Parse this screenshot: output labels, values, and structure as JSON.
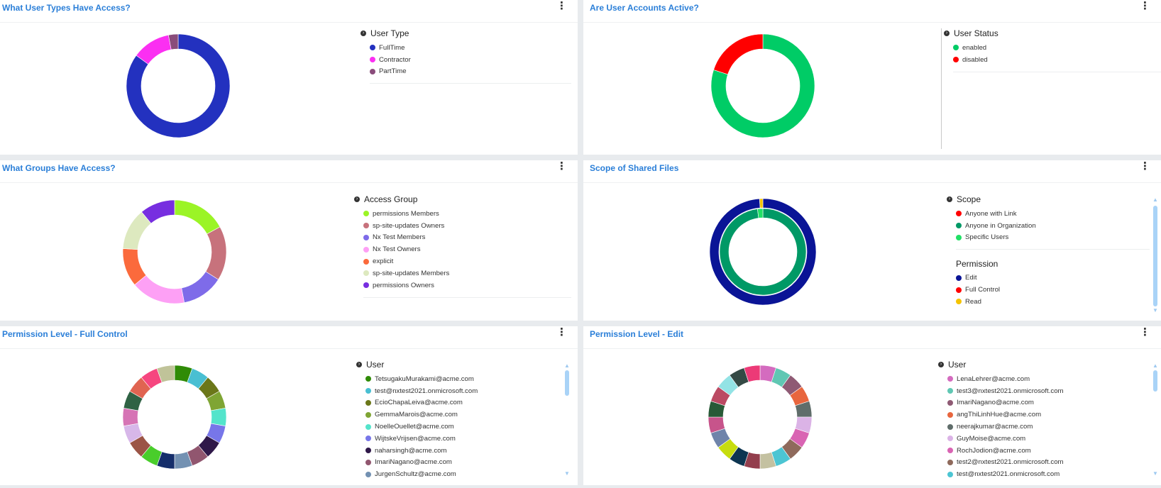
{
  "menu_glyph": "⋮",
  "chevron_glyph": "›",
  "scroll_up": "▲",
  "scroll_down": "▼",
  "panels": {
    "user_types": {
      "title": "What User Types Have Access?",
      "legend_title": "User Type",
      "items": [
        {
          "label": "FullTime",
          "color": "#2331bf",
          "value": 85
        },
        {
          "label": "Contractor",
          "color": "#fb2ff2",
          "value": 12
        },
        {
          "label": "PartTime",
          "color": "#8a4c7b",
          "value": 3
        }
      ]
    },
    "user_accounts": {
      "title": "Are User Accounts Active?",
      "legend_title": "User Status",
      "items": [
        {
          "label": "enabled",
          "color": "#00cc66",
          "value": 80
        },
        {
          "label": "disabled",
          "color": "#ff0000",
          "value": 20
        }
      ]
    },
    "groups": {
      "title": "What Groups Have Access?",
      "legend_title": "Access Group",
      "items": [
        {
          "label": "permissions Members",
          "color": "#9bf426",
          "value": 17
        },
        {
          "label": "sp-site-updates Owners",
          "color": "#c7727c",
          "value": 17
        },
        {
          "label": "Nx Test Members",
          "color": "#7e6be9",
          "value": 13
        },
        {
          "label": "Nx Test Owners",
          "color": "#fda0f5",
          "value": 17
        },
        {
          "label": "explicit",
          "color": "#fb6a3c",
          "value": 12
        },
        {
          "label": "sp-site-updates Members",
          "color": "#dde9bf",
          "value": 13
        },
        {
          "label": "permissions Owners",
          "color": "#772ee0",
          "value": 11
        }
      ]
    },
    "shared_files": {
      "title": "Scope of Shared Files",
      "legend_title": "Scope",
      "scope_items": [
        {
          "label": "Anyone with Link",
          "color": "#ff0000",
          "value": 0
        },
        {
          "label": "Anyone in Organization",
          "color": "#009966",
          "value": 98
        },
        {
          "label": "Specific Users",
          "color": "#21e065",
          "value": 2
        }
      ],
      "permission_title": "Permission",
      "permission_items": [
        {
          "label": "Edit",
          "color": "#0a1496",
          "value": 99
        },
        {
          "label": "Full Control",
          "color": "#ff0000",
          "value": 0
        },
        {
          "label": "Read",
          "color": "#f5c400",
          "value": 1
        }
      ]
    },
    "full_control": {
      "title": "Permission Level - Full Control",
      "legend_title": "User",
      "items": [
        {
          "label": "TetsugakuMurakami@acme.com",
          "color": "#2f8b06"
        },
        {
          "label": "test@nxtest2021.onmicrosoft.com",
          "color": "#49bfd2"
        },
        {
          "label": "EcioChapaLeiva@acme.com",
          "color": "#6b7719"
        },
        {
          "label": "GemmaMarois@acme.com",
          "color": "#7fa534"
        },
        {
          "label": "NoelleOuellet@acme.com",
          "color": "#54e4cb"
        },
        {
          "label": "WijtskeVrijsen@acme.com",
          "color": "#7776e9"
        },
        {
          "label": "naharsingh@acme.com",
          "color": "#2f1849"
        },
        {
          "label": "ImariNagano@acme.com",
          "color": "#91566f"
        },
        {
          "label": "JurgenSchultz@acme.com",
          "color": "#7391b2"
        }
      ],
      "segment_colors": [
        "#2f8b06",
        "#49bfd2",
        "#6b7719",
        "#7fa534",
        "#54e4cb",
        "#7776e9",
        "#2f1849",
        "#91566f",
        "#7391b2",
        "#152e6b",
        "#49cd2b",
        "#9b5446",
        "#d7b7e9",
        "#d674b5",
        "#2f6244",
        "#e06451",
        "#f6467f",
        "#c0c399"
      ]
    },
    "edit": {
      "title": "Permission Level - Edit",
      "legend_title": "User",
      "items": [
        {
          "label": "LenaLehrer@acme.com",
          "color": "#d46bbf"
        },
        {
          "label": "test3@nxtest2021.onmicrosoft.com",
          "color": "#60c7b3"
        },
        {
          "label": "ImariNagano@acme.com",
          "color": "#8f5a74"
        },
        {
          "label": "angThiLinhHue@acme.com",
          "color": "#e8663e"
        },
        {
          "label": "neerajkumar@acme.com",
          "color": "#5f6d6a"
        },
        {
          "label": "GuyMoise@acme.com",
          "color": "#dbb3e6"
        },
        {
          "label": "RochJodion@acme.com",
          "color": "#d964b3"
        },
        {
          "label": "test2@nxtest2021.onmicrosoft.com",
          "color": "#8f6a5c"
        },
        {
          "label": "test@nxtest2021.onmicrosoft.com",
          "color": "#4cc5d3"
        }
      ],
      "segment_colors": [
        "#d46bbf",
        "#60c7b3",
        "#8f5a74",
        "#e8663e",
        "#5f6d6a",
        "#dbb3e6",
        "#d964b3",
        "#8f6a5c",
        "#4cc5d3",
        "#c4c1a1",
        "#933e4d",
        "#0d3551",
        "#c7dd0e",
        "#6f84aa",
        "#c7548b",
        "#285a37",
        "#bb4a63",
        "#93e3e5",
        "#344a45",
        "#ec3a77"
      ]
    }
  }
}
